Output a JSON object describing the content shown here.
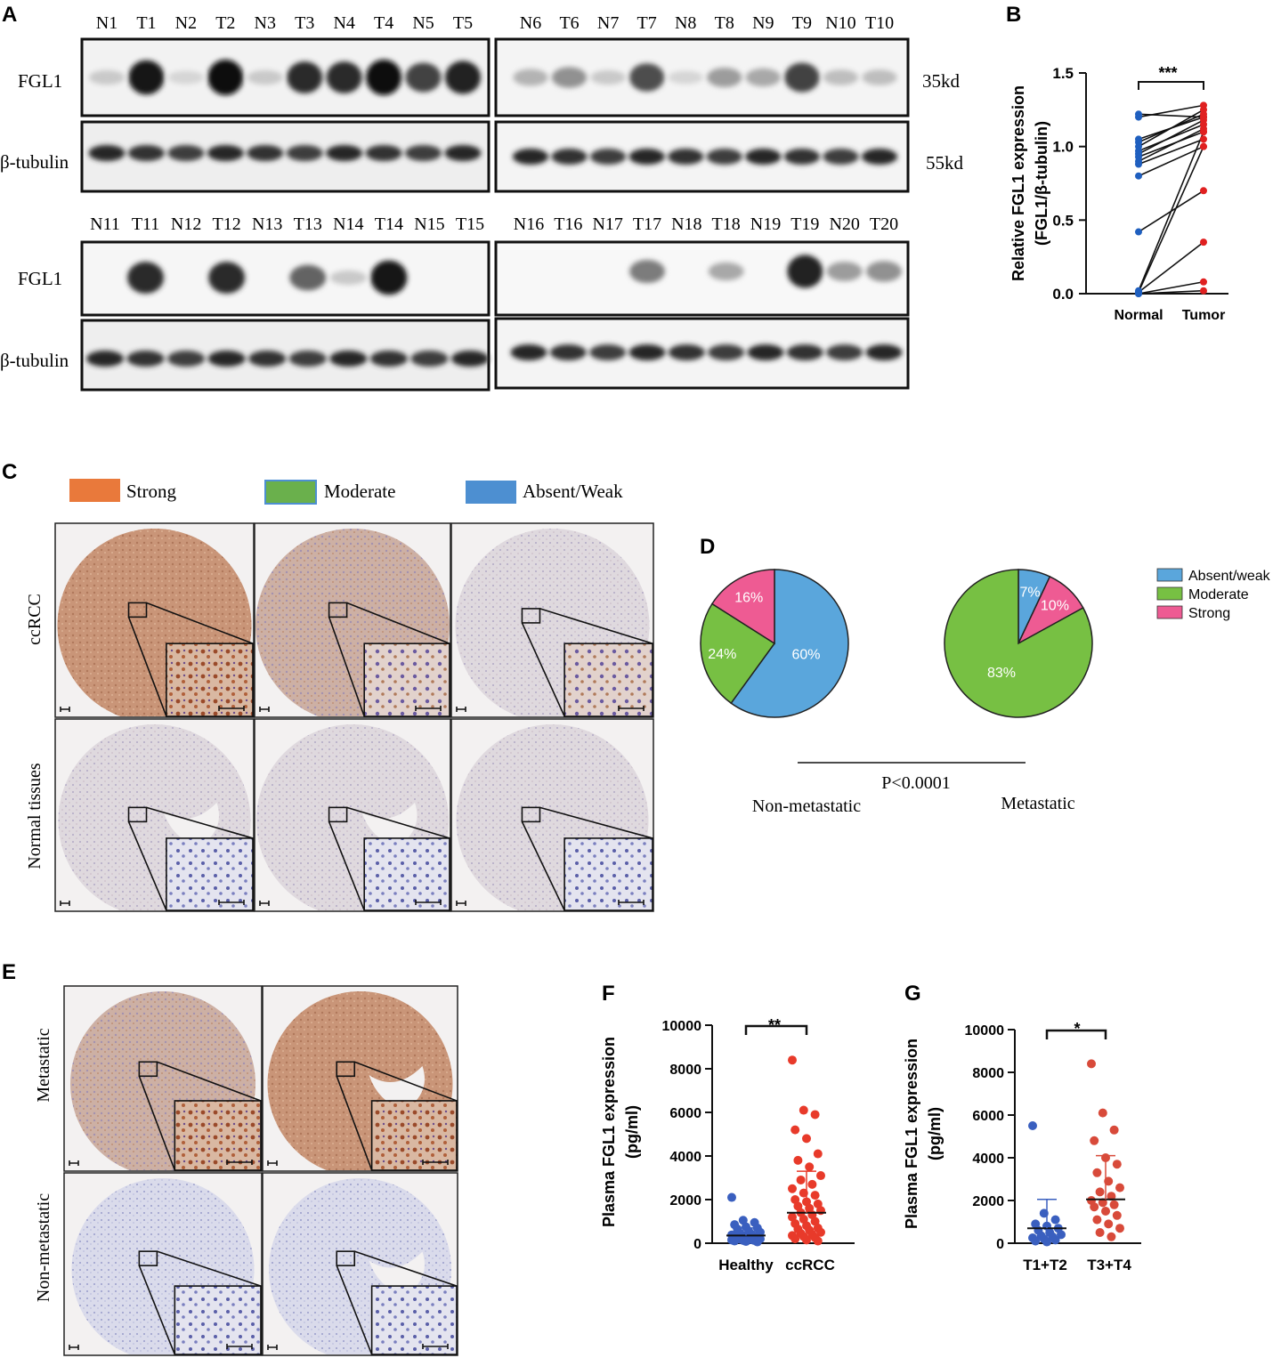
{
  "panels": {
    "a": "A",
    "b": "B",
    "c": "C",
    "d": "D",
    "e": "E",
    "f": "F",
    "g": "G"
  },
  "blot": {
    "top_left_lanes": [
      "N1",
      "T1",
      "N2",
      "T2",
      "N3",
      "T3",
      "N4",
      "T4",
      "N5",
      "T5"
    ],
    "top_right_lanes": [
      "N6",
      "T6",
      "N7",
      "T7",
      "N8",
      "T8",
      "N9",
      "T9",
      "N10",
      "T10"
    ],
    "bottom_left_lanes": [
      "N11",
      "T11",
      "N12",
      "T12",
      "N13",
      "T13",
      "N14",
      "T14",
      "N15",
      "T15"
    ],
    "bottom_right_lanes": [
      "N16",
      "T16",
      "N17",
      "T17",
      "N18",
      "T18",
      "N19",
      "T19",
      "N20",
      "T20"
    ],
    "protein_fgl1": "FGL1",
    "protein_tubulin": "β-tubulin",
    "size_fgl1": "35kd",
    "size_tubulin": "55kd",
    "fgl1_intensity_top_left": [
      0.15,
      0.95,
      0.1,
      1.0,
      0.15,
      0.85,
      0.85,
      1.0,
      0.75,
      0.9
    ],
    "fgl1_intensity_top_right": [
      0.25,
      0.4,
      0.15,
      0.7,
      0.1,
      0.35,
      0.3,
      0.75,
      0.2,
      0.2
    ],
    "fgl1_intensity_bottom_left": [
      0.0,
      0.85,
      0.0,
      0.85,
      0.0,
      0.6,
      0.15,
      0.95,
      0.0,
      0.0
    ],
    "fgl1_intensity_bottom_right": [
      0.0,
      0.0,
      0.0,
      0.5,
      0.0,
      0.3,
      0.0,
      0.9,
      0.35,
      0.4
    ]
  },
  "chart_b": {
    "type": "scatter",
    "ylabel_line1": "Relative FGL1 expression",
    "ylabel_line2": "(FGL1/β-tubulin)",
    "categories": [
      "Normal",
      "Tumor"
    ],
    "yticks": [
      "0.0",
      "0.5",
      "1.0",
      "1.5"
    ],
    "ylim": [
      0,
      1.5
    ],
    "significance": "***",
    "pairs": [
      [
        1.22,
        1.2
      ],
      [
        1.2,
        1.28
      ],
      [
        1.05,
        1.2
      ],
      [
        1.03,
        1.22
      ],
      [
        1.0,
        1.25
      ],
      [
        0.97,
        1.15
      ],
      [
        0.95,
        1.18
      ],
      [
        0.93,
        1.1
      ],
      [
        0.9,
        1.12
      ],
      [
        0.88,
        1.05
      ],
      [
        0.8,
        1.0
      ],
      [
        0.42,
        0.7
      ],
      [
        0.02,
        1.1
      ],
      [
        0.01,
        1.0
      ],
      [
        0.01,
        0.35
      ],
      [
        0.0,
        0.08
      ],
      [
        0.0,
        0.02
      ]
    ],
    "normal_color": "#1f5fbf",
    "tumor_color": "#e02020"
  },
  "ihc_legend": {
    "items": [
      {
        "label": "Strong",
        "color": "#e9793b"
      },
      {
        "label": "Moderate",
        "color": "#6ab04c"
      },
      {
        "label": "Absent/Weak",
        "color": "#4d8fd1"
      }
    ]
  },
  "ihc_c": {
    "row1": "ccRCC",
    "row2": "Normal tissues"
  },
  "chart_d": {
    "type": "pie",
    "legend": [
      {
        "label": "Absent/weak",
        "color": "#5aa6dc"
      },
      {
        "label": "Moderate",
        "color": "#77c043"
      },
      {
        "label": "Strong",
        "color": "#ee5b93"
      }
    ],
    "pies": [
      {
        "name": "Non-metastatic",
        "slices": [
          60,
          24,
          16
        ],
        "labels": [
          "60%",
          "24%",
          "16%"
        ]
      },
      {
        "name": "Metastatic",
        "slices": [
          7,
          83,
          10
        ],
        "labels": [
          "7%",
          "83%",
          "10%"
        ]
      }
    ],
    "pvalue": "P<0.0001"
  },
  "ihc_e": {
    "row1": "Metastatic",
    "row2": "Non-metastatic"
  },
  "chart_f": {
    "type": "scatter",
    "ylabel_line1": "Plasma FGL1 expression",
    "ylabel_line2": "(pg/ml)",
    "categories": [
      "Healthy",
      "ccRCC"
    ],
    "yticks": [
      "0",
      "2000",
      "4000",
      "6000",
      "8000",
      "10000"
    ],
    "ylim": [
      0,
      10000
    ],
    "significance": "**",
    "group1": {
      "mean": 350,
      "sd_upper": 700,
      "values": [
        2100,
        1050,
        950,
        850,
        750,
        700,
        650,
        550,
        500,
        450,
        400,
        380,
        350,
        320,
        300,
        280,
        260,
        240,
        220,
        200,
        180,
        160,
        150,
        130,
        120,
        100,
        80,
        60
      ]
    },
    "group2": {
      "mean": 1400,
      "sd_upper": 3300,
      "values": [
        8400,
        6100,
        5900,
        5200,
        4800,
        4100,
        3800,
        3500,
        3100,
        2900,
        2700,
        2500,
        2300,
        2200,
        2000,
        1900,
        1800,
        1700,
        1600,
        1500,
        1400,
        1300,
        1200,
        1100,
        1000,
        900,
        800,
        700,
        650,
        600,
        500,
        450,
        400,
        350,
        300,
        250,
        200,
        150,
        100
      ]
    },
    "color1": "#3a5fbf",
    "color2": "#e83a2a"
  },
  "chart_g": {
    "type": "scatter",
    "ylabel_line1": "Plasma FGL1 expression",
    "ylabel_line2": "(pg/ml)",
    "categories": [
      "T1+T2",
      "T3+T4"
    ],
    "yticks": [
      "0",
      "2000",
      "4000",
      "6000",
      "8000",
      "10000"
    ],
    "ylim": [
      0,
      10000
    ],
    "significance": "*",
    "group1": {
      "mean": 700,
      "sd_upper": 2050,
      "values": [
        5500,
        1400,
        1100,
        900,
        800,
        700,
        600,
        500,
        400,
        350,
        300,
        250,
        200,
        150,
        100,
        60
      ]
    },
    "group2": {
      "mean": 2050,
      "sd_upper": 4100,
      "values": [
        8400,
        6100,
        5300,
        4800,
        4000,
        3700,
        3300,
        2900,
        2600,
        2400,
        2200,
        2000,
        1900,
        1800,
        1700,
        1500,
        1300,
        1100,
        900,
        700,
        500,
        300
      ]
    },
    "color1": "#3a5fbf",
    "color2": "#d84a3a"
  }
}
